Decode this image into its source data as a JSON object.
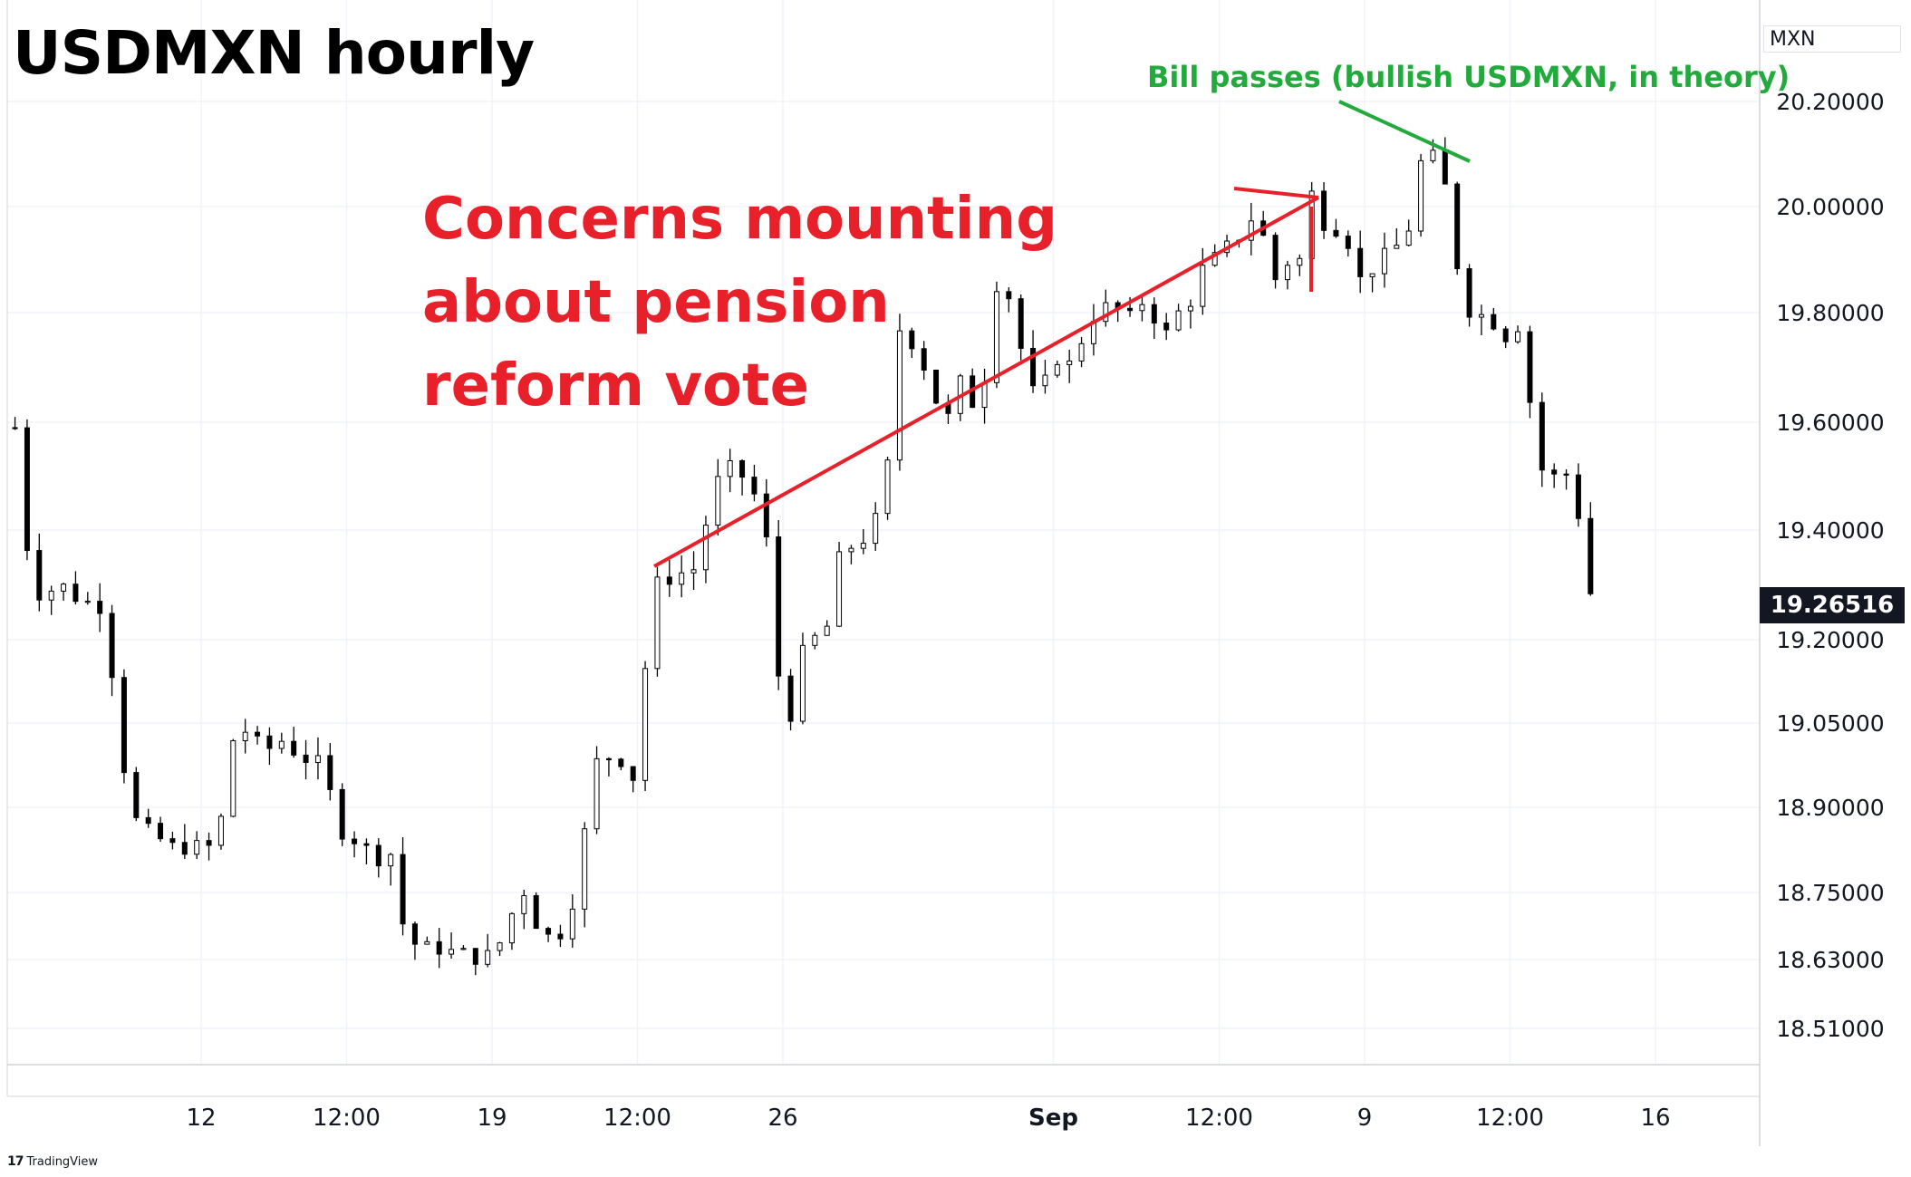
{
  "header": {
    "title": "USDMXN hourly"
  },
  "annotations": {
    "concerns": "Concerns mounting\nabout pension\nreform vote",
    "bill": "Bill passes (bullish USDMXN, in theory)"
  },
  "price_axis": {
    "unit": "MXN",
    "last_price": "19.26516"
  },
  "footer": {
    "logo_icon": "tradingview-logo-icon",
    "brand": "TradingView"
  },
  "colors": {
    "annotation_red": "#e8202a",
    "annotation_green": "#22aa3c",
    "candle": "#000000",
    "last_price_bg": "#131722",
    "grid": "#f0f3fa"
  },
  "chart_data": {
    "type": "line",
    "title": "USDMXN hourly",
    "xlabel": "",
    "ylabel": "",
    "unit": "MXN",
    "x_ticks": [
      {
        "label": "12",
        "x": 0.0
      },
      {
        "label": "12:00",
        "x": 0.5
      },
      {
        "label": "19",
        "x": 1.0
      },
      {
        "label": "12:00",
        "x": 1.5
      },
      {
        "label": "26",
        "x": 2.0
      },
      {
        "label": "Sep",
        "x": 2.93
      },
      {
        "label": "12:00",
        "x": 3.5
      },
      {
        "label": "9",
        "x": 4.0
      },
      {
        "label": "12:00",
        "x": 4.5
      },
      {
        "label": "16",
        "x": 5.0
      }
    ],
    "xlim": [
      -0.65,
      5.38
    ],
    "y_ticks": [
      {
        "label": "20.20000",
        "v": 20.2
      },
      {
        "label": "20.00000",
        "v": 20.0
      },
      {
        "label": "19.80000",
        "v": 19.8
      },
      {
        "label": "19.60000",
        "v": 19.6
      },
      {
        "label": "19.40000",
        "v": 19.4
      },
      {
        "label": "19.20000",
        "v": 19.2
      },
      {
        "label": "19.05000",
        "v": 19.05
      },
      {
        "label": "18.90000",
        "v": 18.9
      },
      {
        "label": "18.75000",
        "v": 18.75
      },
      {
        "label": "18.63000",
        "v": 18.63
      },
      {
        "label": "18.51000",
        "v": 18.51
      }
    ],
    "series": [
      {
        "values": [
          [
            -0.64,
            19.59
          ],
          [
            -0.62,
            19.43
          ],
          [
            -0.58,
            19.32
          ],
          [
            -0.54,
            19.26
          ],
          [
            -0.5,
            19.31
          ],
          [
            -0.44,
            19.28
          ],
          [
            -0.4,
            19.27
          ],
          [
            -0.34,
            19.26
          ],
          [
            -0.3,
            19.12
          ],
          [
            -0.26,
            18.95
          ],
          [
            -0.22,
            18.87
          ],
          [
            -0.16,
            18.85
          ],
          [
            -0.1,
            18.83
          ],
          [
            -0.02,
            18.83
          ],
          [
            0.04,
            18.83
          ],
          [
            0.08,
            18.9
          ],
          [
            0.12,
            19.06
          ],
          [
            0.16,
            19.03
          ],
          [
            0.22,
            19.0
          ],
          [
            0.28,
            19.02
          ],
          [
            0.34,
            18.99
          ],
          [
            0.4,
            18.98
          ],
          [
            0.44,
            18.93
          ],
          [
            0.48,
            18.86
          ],
          [
            0.54,
            18.84
          ],
          [
            0.6,
            18.81
          ],
          [
            0.66,
            18.82
          ],
          [
            0.7,
            18.67
          ],
          [
            0.76,
            18.65
          ],
          [
            0.82,
            18.65
          ],
          [
            0.88,
            18.64
          ],
          [
            0.92,
            18.64
          ],
          [
            0.96,
            18.63
          ],
          [
            1.0,
            18.64
          ],
          [
            1.04,
            18.67
          ],
          [
            1.08,
            18.73
          ],
          [
            1.12,
            18.76
          ],
          [
            1.16,
            18.68
          ],
          [
            1.2,
            18.67
          ],
          [
            1.24,
            18.68
          ],
          [
            1.28,
            18.74
          ],
          [
            1.32,
            18.86
          ],
          [
            1.36,
            18.98
          ],
          [
            1.4,
            18.99
          ],
          [
            1.44,
            18.99
          ],
          [
            1.48,
            18.93
          ],
          [
            1.52,
            19.12
          ],
          [
            1.56,
            19.3
          ],
          [
            1.6,
            19.31
          ],
          [
            1.64,
            19.32
          ],
          [
            1.7,
            19.33
          ],
          [
            1.76,
            19.47
          ],
          [
            1.8,
            19.52
          ],
          [
            1.86,
            19.5
          ],
          [
            1.92,
            19.45
          ],
          [
            1.96,
            19.33
          ],
          [
            2.0,
            19.02
          ],
          [
            2.04,
            19.09
          ],
          [
            2.08,
            19.21
          ],
          [
            2.12,
            19.2
          ],
          [
            2.16,
            19.23
          ],
          [
            2.2,
            19.37
          ],
          [
            2.26,
            19.37
          ],
          [
            2.32,
            19.42
          ],
          [
            2.36,
            19.52
          ],
          [
            2.4,
            19.77
          ],
          [
            2.44,
            19.75
          ],
          [
            2.48,
            19.71
          ],
          [
            2.52,
            19.65
          ],
          [
            2.56,
            19.59
          ],
          [
            2.6,
            19.68
          ],
          [
            2.64,
            19.65
          ],
          [
            2.68,
            19.6
          ],
          [
            2.72,
            19.85
          ],
          [
            2.76,
            19.86
          ],
          [
            2.8,
            19.79
          ],
          [
            2.84,
            19.67
          ],
          [
            2.88,
            19.64
          ],
          [
            2.92,
            19.7
          ],
          [
            2.96,
            19.73
          ],
          [
            3.0,
            19.69
          ],
          [
            3.04,
            19.78
          ],
          [
            3.08,
            19.8
          ],
          [
            3.14,
            19.82
          ],
          [
            3.18,
            19.77
          ],
          [
            3.22,
            19.83
          ],
          [
            3.28,
            19.79
          ],
          [
            3.32,
            19.76
          ],
          [
            3.36,
            19.8
          ],
          [
            3.4,
            19.82
          ],
          [
            3.44,
            19.88
          ],
          [
            3.5,
            19.91
          ],
          [
            3.56,
            19.94
          ],
          [
            3.6,
            19.96
          ],
          [
            3.64,
            20.03
          ],
          [
            3.66,
            19.88
          ],
          [
            3.7,
            19.86
          ],
          [
            3.74,
            19.9
          ],
          [
            3.78,
            19.9
          ],
          [
            3.82,
            20.03
          ],
          [
            3.86,
            19.97
          ],
          [
            3.9,
            19.96
          ],
          [
            3.94,
            19.94
          ],
          [
            3.98,
            19.86
          ],
          [
            4.02,
            19.88
          ],
          [
            4.06,
            19.9
          ],
          [
            4.1,
            19.93
          ],
          [
            4.14,
            19.91
          ],
          [
            4.18,
            20.08
          ],
          [
            4.22,
            20.09
          ],
          [
            4.26,
            20.1
          ],
          [
            4.3,
            19.95
          ],
          [
            4.34,
            19.82
          ],
          [
            4.38,
            19.79
          ],
          [
            4.42,
            19.8
          ],
          [
            4.46,
            19.77
          ],
          [
            4.5,
            19.75
          ],
          [
            4.54,
            19.79
          ],
          [
            4.56,
            19.67
          ],
          [
            4.6,
            19.52
          ],
          [
            4.64,
            19.49
          ],
          [
            4.68,
            19.52
          ],
          [
            4.72,
            19.47
          ],
          [
            4.76,
            19.36
          ],
          [
            4.78,
            19.27
          ]
        ]
      }
    ]
  }
}
